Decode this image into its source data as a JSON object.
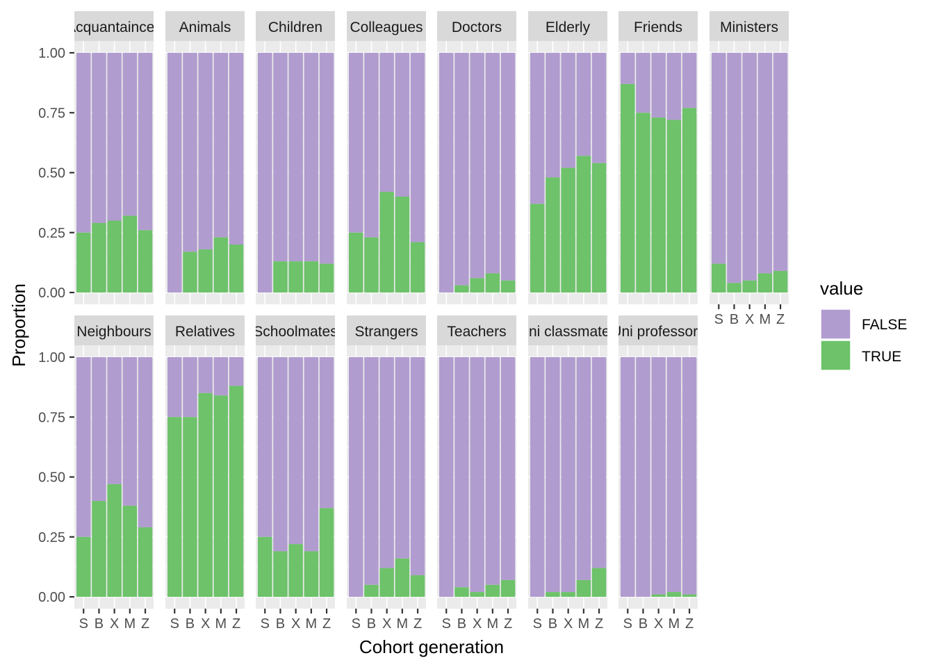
{
  "chart_data": {
    "type": "bar",
    "subtype": "stacked-proportion-facets",
    "xlabel": "Cohort generation",
    "ylabel": "Proportion",
    "ylim": [
      0,
      1
    ],
    "y_ticks": [
      "0.00",
      "0.25",
      "0.50",
      "0.75",
      "1.00"
    ],
    "categories": [
      "S",
      "B",
      "X",
      "M",
      "Z"
    ],
    "grid": true,
    "legend": {
      "title": "value",
      "placement": "right",
      "entries": [
        {
          "label": "FALSE",
          "color": "#b19ccf"
        },
        {
          "label": "TRUE",
          "color": "#6dc26a"
        }
      ]
    },
    "colors": {
      "FALSE": "#b19ccf",
      "TRUE": "#6dc26a",
      "panel": "#ebebeb",
      "strip": "#d9d9d9",
      "grid": "#ffffff"
    },
    "facets": [
      {
        "label": "Acquantainces",
        "true": [
          0.25,
          0.29,
          0.3,
          0.32,
          0.26
        ]
      },
      {
        "label": "Animals",
        "true": [
          0.0,
          0.17,
          0.18,
          0.23,
          0.2
        ]
      },
      {
        "label": "Children",
        "true": [
          0.0,
          0.13,
          0.13,
          0.13,
          0.12
        ]
      },
      {
        "label": "Colleagues",
        "true": [
          0.25,
          0.23,
          0.42,
          0.4,
          0.21
        ]
      },
      {
        "label": "Doctors",
        "true": [
          0.0,
          0.03,
          0.06,
          0.08,
          0.05
        ]
      },
      {
        "label": "Elderly",
        "true": [
          0.37,
          0.48,
          0.52,
          0.57,
          0.54
        ]
      },
      {
        "label": "Friends",
        "true": [
          0.87,
          0.75,
          0.73,
          0.72,
          0.77
        ]
      },
      {
        "label": "Ministers",
        "true": [
          0.12,
          0.04,
          0.05,
          0.08,
          0.09
        ]
      },
      {
        "label": "Neighbours",
        "true": [
          0.25,
          0.4,
          0.47,
          0.38,
          0.29
        ]
      },
      {
        "label": "Relatives",
        "true": [
          0.75,
          0.75,
          0.85,
          0.84,
          0.88
        ]
      },
      {
        "label": "Schoolmates",
        "true": [
          0.25,
          0.19,
          0.22,
          0.19,
          0.37
        ]
      },
      {
        "label": "Strangers",
        "true": [
          0.0,
          0.05,
          0.12,
          0.16,
          0.09
        ]
      },
      {
        "label": "Teachers",
        "true": [
          0.0,
          0.04,
          0.02,
          0.05,
          0.07
        ]
      },
      {
        "label": "Uni classmates",
        "true": [
          0.0,
          0.02,
          0.02,
          0.07,
          0.12
        ]
      },
      {
        "label": "Uni professors",
        "true": [
          0.0,
          0.0,
          0.01,
          0.02,
          0.01
        ]
      }
    ]
  }
}
